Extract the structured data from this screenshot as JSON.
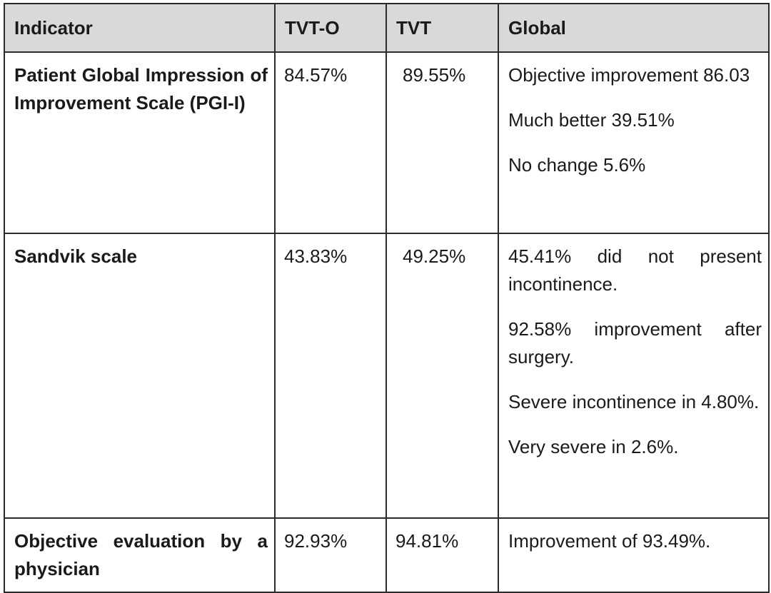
{
  "table": {
    "headers": [
      "Indicator",
      "TVT-O",
      "TVT",
      "Global"
    ],
    "rows": [
      {
        "indicator": "Patient Global Impression of Improvement Scale (PGI-I)",
        "tvto": "84.57%",
        "tvt": "89.55%",
        "global": [
          "Objective improvement 86.03",
          "Much better 39.51%",
          "No change 5.6%"
        ]
      },
      {
        "indicator": "Sandvik scale",
        "tvto": "43.83%",
        "tvt": "49.25%",
        "global": [
          "45.41% did not present incontinence.",
          "92.58% improvement after surgery.",
          "Severe incontinence in 4.80%.",
          "Very severe in 2.6%."
        ]
      },
      {
        "indicator": "Objective evaluation by a physician",
        "tvto": "92.93%",
        "tvt": "94.81%",
        "global": [
          "Improvement of 93.49%."
        ]
      }
    ]
  }
}
